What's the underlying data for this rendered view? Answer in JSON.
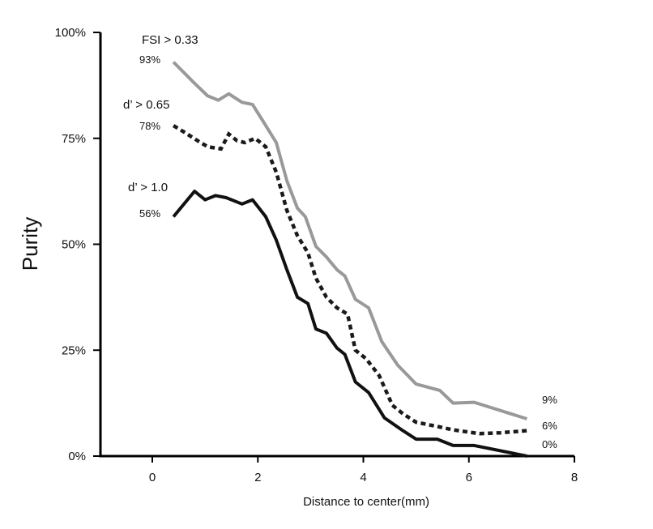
{
  "chart_data": {
    "type": "line",
    "xlabel": "Distance to center(mm)",
    "ylabel": "Purity",
    "xlim": [
      0,
      8
    ],
    "ylim": [
      0,
      100
    ],
    "x_ticks": [
      "0",
      "2",
      "4",
      "6",
      "8"
    ],
    "y_ticks": [
      "0%",
      "25%",
      "50%",
      "75%",
      "100%"
    ],
    "grid": false,
    "legend": "none (series labeled directly on lines)",
    "series": [
      {
        "name": "FSI > 0.33",
        "start_label": "93%",
        "end_label": "9%",
        "color": "#999999",
        "style": "solid",
        "x": [
          0.4,
          0.8,
          1.05,
          1.25,
          1.45,
          1.7,
          1.9,
          2.1,
          2.35,
          2.55,
          2.75,
          2.9,
          3.1,
          3.3,
          3.5,
          3.65,
          3.85,
          4.1,
          4.35,
          4.65,
          5.0,
          5.45,
          5.7,
          6.1,
          7.1
        ],
        "y": [
          93,
          88,
          85,
          84,
          85.5,
          83.5,
          83,
          79,
          74,
          65,
          58.5,
          56.5,
          49.5,
          47,
          44,
          42.5,
          37,
          35,
          27,
          21.5,
          17,
          15.5,
          12.5,
          12.7,
          8.8
        ]
      },
      {
        "name": "d’ > 0.65",
        "start_label": "78%",
        "end_label": "6%",
        "color": "#1a1a1a",
        "style": "dotted",
        "x": [
          0.4,
          0.6,
          0.85,
          1.05,
          1.3,
          1.45,
          1.6,
          1.75,
          1.95,
          2.15,
          2.35,
          2.55,
          2.75,
          2.95,
          3.1,
          3.3,
          3.5,
          3.7,
          3.85,
          4.05,
          4.3,
          4.55,
          4.75,
          5.0,
          5.4,
          5.7,
          6.2,
          6.6,
          7.1
        ],
        "y": [
          78,
          76.5,
          74.5,
          73,
          72.5,
          76,
          74.5,
          74,
          75,
          73,
          67,
          58,
          52,
          48,
          42,
          37.5,
          35,
          33.5,
          25,
          23,
          19,
          12,
          10,
          8,
          7,
          6.2,
          5.3,
          5.5,
          6
        ]
      },
      {
        "name": "d’ > 1.0",
        "start_label": "56%",
        "end_label": "0%",
        "color": "#111111",
        "style": "solid",
        "x": [
          0.4,
          0.8,
          1.0,
          1.2,
          1.4,
          1.7,
          1.9,
          2.15,
          2.35,
          2.55,
          2.75,
          2.95,
          3.1,
          3.3,
          3.5,
          3.65,
          3.85,
          4.1,
          4.4,
          4.75,
          5.0,
          5.4,
          5.7,
          6.1,
          7.1
        ],
        "y": [
          56.5,
          62.5,
          60.5,
          61.5,
          61,
          59.5,
          60.5,
          56.5,
          51,
          44,
          37.5,
          36,
          30,
          29,
          25.5,
          24,
          17.5,
          15,
          9,
          6,
          4,
          4,
          2.5,
          2.5,
          0
        ]
      }
    ]
  }
}
